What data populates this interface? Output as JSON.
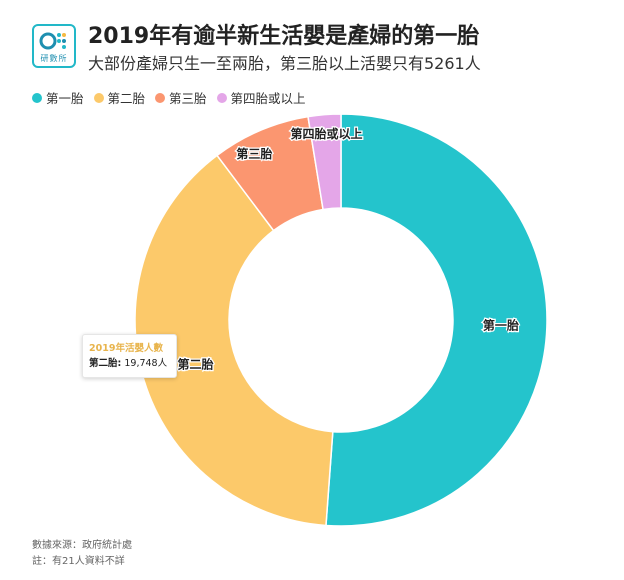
{
  "logo": {
    "text": "研數所"
  },
  "header": {
    "title": "2019年有逾半新生活嬰是產婦的第一胎",
    "subtitle": "大部份產婦只生一至兩胎，第三胎以上活嬰只有5261人"
  },
  "chart_data": {
    "type": "pie",
    "donut": true,
    "legend_position": "top-left",
    "categories": [
      "第一胎",
      "第二胎",
      "第三胎",
      "第四胎或以上"
    ],
    "values": [
      26200,
      19748,
      3950,
      1311
    ],
    "colors": [
      "#24c4cc",
      "#fcc96a",
      "#fb9670",
      "#e4a6e8"
    ]
  },
  "tooltip": {
    "title": "2019年活嬰人數",
    "label": "第二胎",
    "value": "19,748人"
  },
  "footer": {
    "source": "數據來源：政府統計處",
    "note": "註：有21人資料不詳"
  }
}
